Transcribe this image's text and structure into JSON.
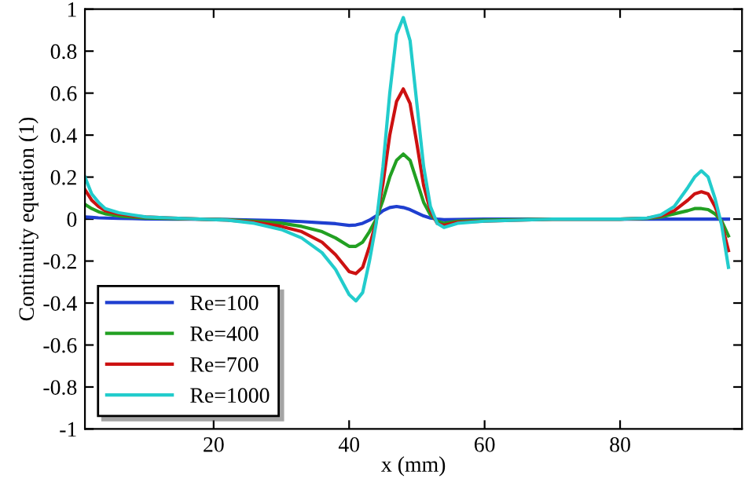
{
  "chart_data": {
    "type": "line",
    "xlabel": "x (mm)",
    "ylabel": "Continuity equation (1)",
    "xlim": [
      1,
      98
    ],
    "xticks": [
      20,
      40,
      60,
      80
    ],
    "ylim": [
      -1,
      1
    ],
    "yticks": [
      -1,
      -0.8,
      -0.6,
      -0.4,
      -0.2,
      0,
      0.2,
      0.4,
      0.6,
      0.8,
      1
    ],
    "x": [
      1,
      2,
      3,
      4,
      6,
      8,
      10,
      14,
      18,
      22,
      26,
      30,
      33,
      36,
      38,
      40,
      41,
      42,
      43,
      44,
      45,
      46,
      47,
      48,
      49,
      50,
      51,
      52,
      53,
      54,
      56,
      60,
      70,
      80,
      84,
      86,
      88,
      90,
      91,
      92,
      93,
      94,
      95,
      96
    ],
    "grid": false,
    "legend": "bottom left",
    "marker": "none",
    "line_style": "solid",
    "series": [
      {
        "name": "Re=100",
        "color": "#1f3fd0",
        "values": [
          0.01,
          0.008,
          0.006,
          0.005,
          0.003,
          0.002,
          0.001,
          0,
          0,
          -0.002,
          -0.005,
          -0.008,
          -0.012,
          -0.018,
          -0.022,
          -0.03,
          -0.028,
          -0.02,
          -0.005,
          0.015,
          0.04,
          0.055,
          0.06,
          0.055,
          0.045,
          0.03,
          0.015,
          0.005,
          0,
          -0.003,
          -0.002,
          0,
          0,
          0,
          0,
          0,
          0,
          0,
          0,
          0,
          0,
          0,
          0,
          0
        ]
      },
      {
        "name": "Re=400",
        "color": "#22a022",
        "values": [
          0.07,
          0.05,
          0.035,
          0.025,
          0.015,
          0.01,
          0.005,
          0.002,
          0,
          -0.003,
          -0.01,
          -0.02,
          -0.035,
          -0.06,
          -0.09,
          -0.13,
          -0.13,
          -0.11,
          -0.06,
          0.0,
          0.09,
          0.2,
          0.28,
          0.31,
          0.28,
          0.18,
          0.08,
          0.02,
          -0.01,
          -0.02,
          -0.01,
          -0.005,
          0,
          0,
          0.003,
          0.01,
          0.025,
          0.04,
          0.05,
          0.05,
          0.045,
          0.025,
          -0.01,
          -0.08
        ]
      },
      {
        "name": "Re=700",
        "color": "#cc1111",
        "values": [
          0.14,
          0.09,
          0.06,
          0.04,
          0.025,
          0.015,
          0.01,
          0.005,
          0,
          -0.005,
          -0.015,
          -0.035,
          -0.06,
          -0.11,
          -0.17,
          -0.25,
          -0.26,
          -0.23,
          -0.13,
          -0.01,
          0.17,
          0.4,
          0.56,
          0.62,
          0.55,
          0.36,
          0.16,
          0.04,
          -0.02,
          -0.03,
          -0.015,
          -0.01,
          0,
          0,
          0.005,
          0.015,
          0.04,
          0.09,
          0.12,
          0.13,
          0.12,
          0.06,
          -0.02,
          -0.15
        ]
      },
      {
        "name": "Re=1000",
        "color": "#22cccc",
        "values": [
          0.2,
          0.12,
          0.08,
          0.05,
          0.03,
          0.02,
          0.01,
          0.005,
          0,
          -0.005,
          -0.02,
          -0.05,
          -0.09,
          -0.16,
          -0.24,
          -0.36,
          -0.39,
          -0.35,
          -0.2,
          -0.02,
          0.25,
          0.6,
          0.88,
          0.96,
          0.85,
          0.55,
          0.25,
          0.06,
          -0.02,
          -0.04,
          -0.02,
          -0.01,
          0,
          0,
          0.005,
          0.02,
          0.06,
          0.15,
          0.2,
          0.23,
          0.2,
          0.1,
          -0.03,
          -0.23
        ]
      }
    ]
  }
}
